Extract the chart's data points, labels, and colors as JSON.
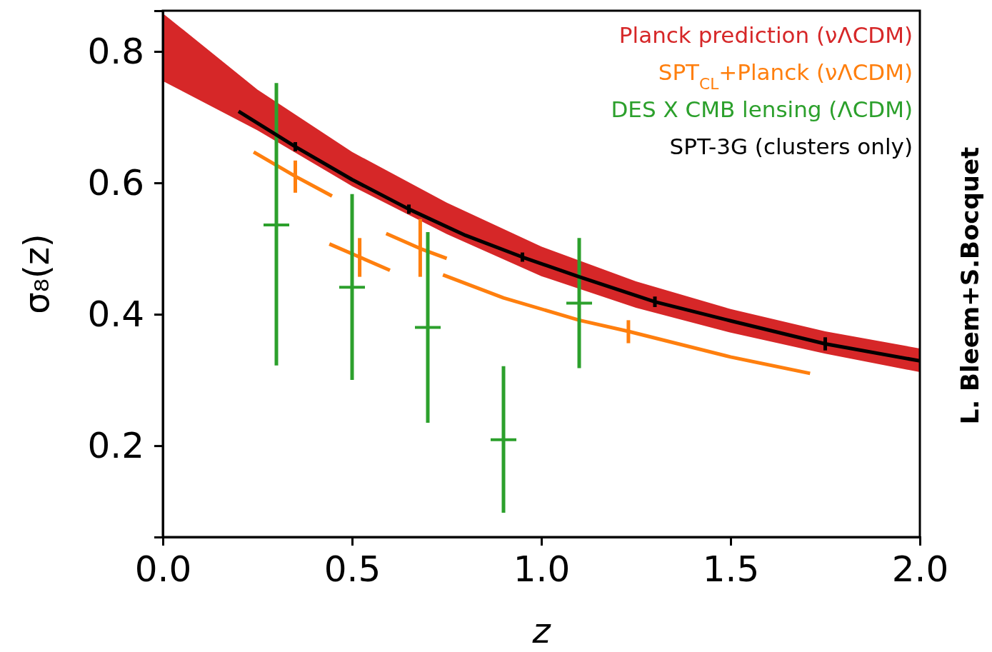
{
  "chart_data": {
    "type": "line",
    "xlabel": "z",
    "ylabel": "σ₈(z)",
    "xlim": [
      0,
      2
    ],
    "ylim": [
      0.061,
      0.862
    ],
    "xticks": [
      {
        "value": 0,
        "label": "0.0"
      },
      {
        "value": 0.5,
        "label": "0.5"
      },
      {
        "value": 1,
        "label": "1.0"
      },
      {
        "value": 1.5,
        "label": "1.5"
      },
      {
        "value": 2,
        "label": "2.0"
      }
    ],
    "yticks": [
      0.2,
      0.4,
      0.6,
      0.8
    ],
    "grid": false,
    "legend": "top right",
    "line_style": "solid",
    "annotations": [
      "L. Bleem+S.Bocquet"
    ],
    "series": [
      {
        "name": "Planck prediction (νΛCDM)",
        "color": "#d62728",
        "x": [
          0,
          0.25,
          0.5,
          0.75,
          1,
          1.25,
          1.5,
          1.75,
          2
        ],
        "values": [
          null,
          null,
          null,
          null,
          null,
          null,
          null,
          null,
          null
        ],
        "lower": [
          0.755,
          0.68,
          0.595,
          0.522,
          0.458,
          0.41,
          0.372,
          0.34,
          0.312
        ],
        "upper": [
          0.858,
          0.742,
          0.647,
          0.57,
          0.503,
          0.45,
          0.408,
          0.374,
          0.348
        ]
      },
      {
        "name": "SPT$_{CL}$+Planck (νΛCDM)",
        "color": "#ff7f0e",
        "x": [
          0.24,
          0.35,
          0.447
        ],
        "values": [
          0.647,
          0.61,
          0.58
        ],
        "errors": [
          null,
          [
            0.585,
            0.634
          ],
          null
        ]
      },
      {
        "color": "#ff7f0e",
        "x": [
          0.44,
          0.52,
          0.6
        ],
        "values": [
          0.507,
          0.487,
          0.467
        ],
        "errors": [
          null,
          [
            0.457,
            0.516
          ],
          null
        ]
      },
      {
        "color": "#ff7f0e",
        "x": [
          0.59,
          0.68,
          0.75
        ],
        "values": [
          0.523,
          0.5,
          0.485
        ],
        "errors": [
          null,
          [
            0.457,
            0.545
          ],
          null
        ]
      },
      {
        "color": "#ff7f0e",
        "x": [
          0.74,
          0.9,
          1.1,
          1.23,
          1.5,
          1.71
        ],
        "values": [
          0.46,
          0.425,
          0.391,
          0.374,
          0.335,
          0.31
        ],
        "errors": [
          null,
          null,
          null,
          [
            0.356,
            0.391
          ],
          null,
          null
        ]
      },
      {
        "name": "DES X CMB lensing (ΛCDM)",
        "type": "scatter",
        "marker": "cross",
        "color": "#2ca02c",
        "x": [
          0.3,
          0.5,
          0.7,
          0.9,
          1.1
        ],
        "values": [
          0.536,
          0.441,
          0.38,
          0.209,
          0.417
        ],
        "errors": [
          [
            0.322,
            0.752
          ],
          [
            0.3,
            0.583
          ],
          [
            0.235,
            0.525
          ],
          [
            0.098,
            0.321
          ],
          [
            0.318,
            0.516
          ]
        ]
      },
      {
        "name": "SPT-3G (clusters only)",
        "color": "#000000",
        "x": [
          0.2,
          0.35,
          0.5,
          0.65,
          0.8,
          0.95,
          1.1,
          1.3,
          1.5,
          1.75,
          2
        ],
        "values": [
          0.709,
          0.655,
          0.605,
          0.56,
          0.52,
          0.487,
          0.457,
          0.419,
          0.39,
          0.355,
          0.329
        ],
        "errors": [
          null,
          0.007,
          null,
          0.007,
          null,
          0.007,
          null,
          0.008,
          null,
          0.01,
          null
        ]
      }
    ]
  }
}
